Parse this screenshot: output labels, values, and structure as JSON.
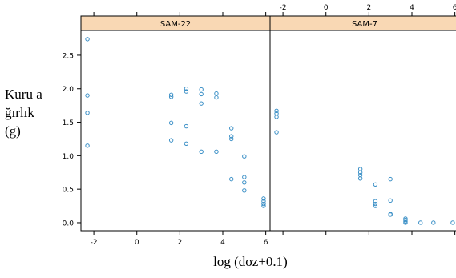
{
  "chart_data": {
    "type": "scatter",
    "ylabel": "Kuru ağırlık (g)",
    "xlabel": "log (doz+0.1)",
    "xlim": [
      -2.6,
      6.2
    ],
    "ylim": [
      -0.12,
      2.87
    ],
    "xticks": [
      -2,
      0,
      2,
      4,
      6
    ],
    "yticks": [
      0.0,
      0.5,
      1.0,
      1.5,
      2.0,
      2.5
    ],
    "yticklabels": [
      "0.0",
      "0.5",
      "1.0",
      "1.5",
      "2.0",
      "2.5"
    ],
    "grid": false,
    "point_color": "#3a8fc6",
    "strip_color": "#f9d8b4",
    "panels": [
      {
        "name": "SAM-22",
        "points": [
          [
            -2.3,
            2.74
          ],
          [
            -2.3,
            1.9
          ],
          [
            -2.3,
            1.64
          ],
          [
            -2.3,
            1.15
          ],
          [
            1.6,
            1.91
          ],
          [
            1.6,
            1.88
          ],
          [
            1.6,
            1.49
          ],
          [
            1.6,
            1.23
          ],
          [
            2.3,
            2.0
          ],
          [
            2.3,
            1.96
          ],
          [
            2.3,
            1.44
          ],
          [
            2.3,
            1.18
          ],
          [
            3.0,
            1.99
          ],
          [
            3.0,
            1.92
          ],
          [
            3.0,
            1.78
          ],
          [
            3.0,
            1.06
          ],
          [
            3.7,
            1.93
          ],
          [
            3.7,
            1.87
          ],
          [
            3.7,
            1.06
          ],
          [
            4.4,
            1.41
          ],
          [
            4.4,
            1.29
          ],
          [
            4.4,
            1.25
          ],
          [
            4.4,
            0.65
          ],
          [
            5.0,
            0.99
          ],
          [
            5.0,
            0.68
          ],
          [
            5.0,
            0.6
          ],
          [
            5.0,
            0.48
          ],
          [
            5.9,
            0.36
          ],
          [
            5.9,
            0.32
          ],
          [
            5.9,
            0.28
          ],
          [
            5.9,
            0.25
          ]
        ]
      },
      {
        "name": "SAM-7",
        "points": [
          [
            -2.3,
            1.67
          ],
          [
            -2.3,
            1.63
          ],
          [
            -2.3,
            1.58
          ],
          [
            -2.3,
            1.35
          ],
          [
            1.6,
            0.8
          ],
          [
            1.6,
            0.75
          ],
          [
            1.6,
            0.71
          ],
          [
            1.6,
            0.66
          ],
          [
            2.3,
            0.57
          ],
          [
            2.3,
            0.32
          ],
          [
            2.3,
            0.28
          ],
          [
            2.3,
            0.25
          ],
          [
            3.0,
            0.65
          ],
          [
            3.0,
            0.33
          ],
          [
            3.0,
            0.13
          ],
          [
            3.0,
            0.12
          ],
          [
            3.7,
            0.06
          ],
          [
            3.7,
            0.04
          ],
          [
            3.7,
            0.02
          ],
          [
            3.7,
            0.0
          ],
          [
            4.4,
            0.0
          ],
          [
            5.0,
            0.0
          ],
          [
            5.9,
            0.0
          ]
        ]
      }
    ]
  }
}
